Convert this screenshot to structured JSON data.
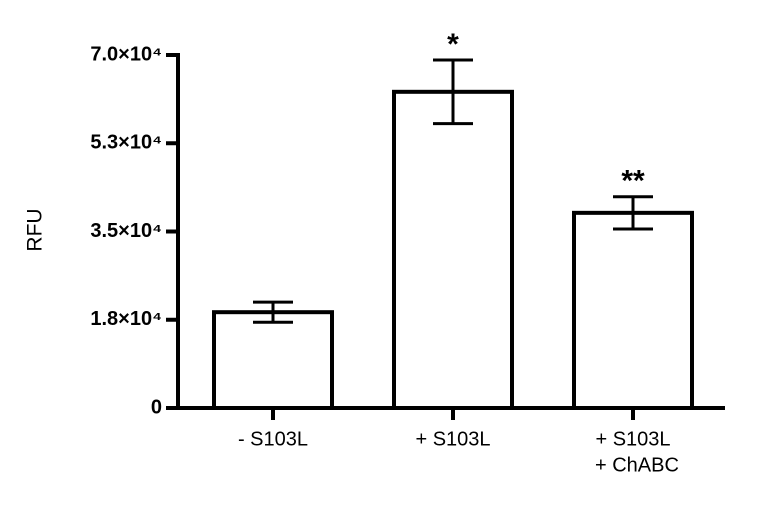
{
  "chart_data": {
    "type": "bar",
    "y_label": "RFU",
    "categories": [
      [
        "- S103L"
      ],
      [
        "+ S103L"
      ],
      [
        "+ S103L",
        "+ ChABC"
      ]
    ],
    "values": [
      19000,
      62700,
      38700
    ],
    "errors": [
      2000,
      6300,
      3200
    ],
    "annotations": [
      null,
      "*",
      "**"
    ],
    "color": "#ffffff",
    "ylim": [
      0,
      70000
    ],
    "yticks": [
      0,
      {
        "value": 17500,
        "label": "1.8×10⁴"
      },
      {
        "value": 35000,
        "label": "3.5×10⁴"
      },
      {
        "value": 52500,
        "label": "5.3×10⁴"
      },
      {
        "value": 70000,
        "label": "7.0×10⁴"
      }
    ],
    "grid": false
  }
}
